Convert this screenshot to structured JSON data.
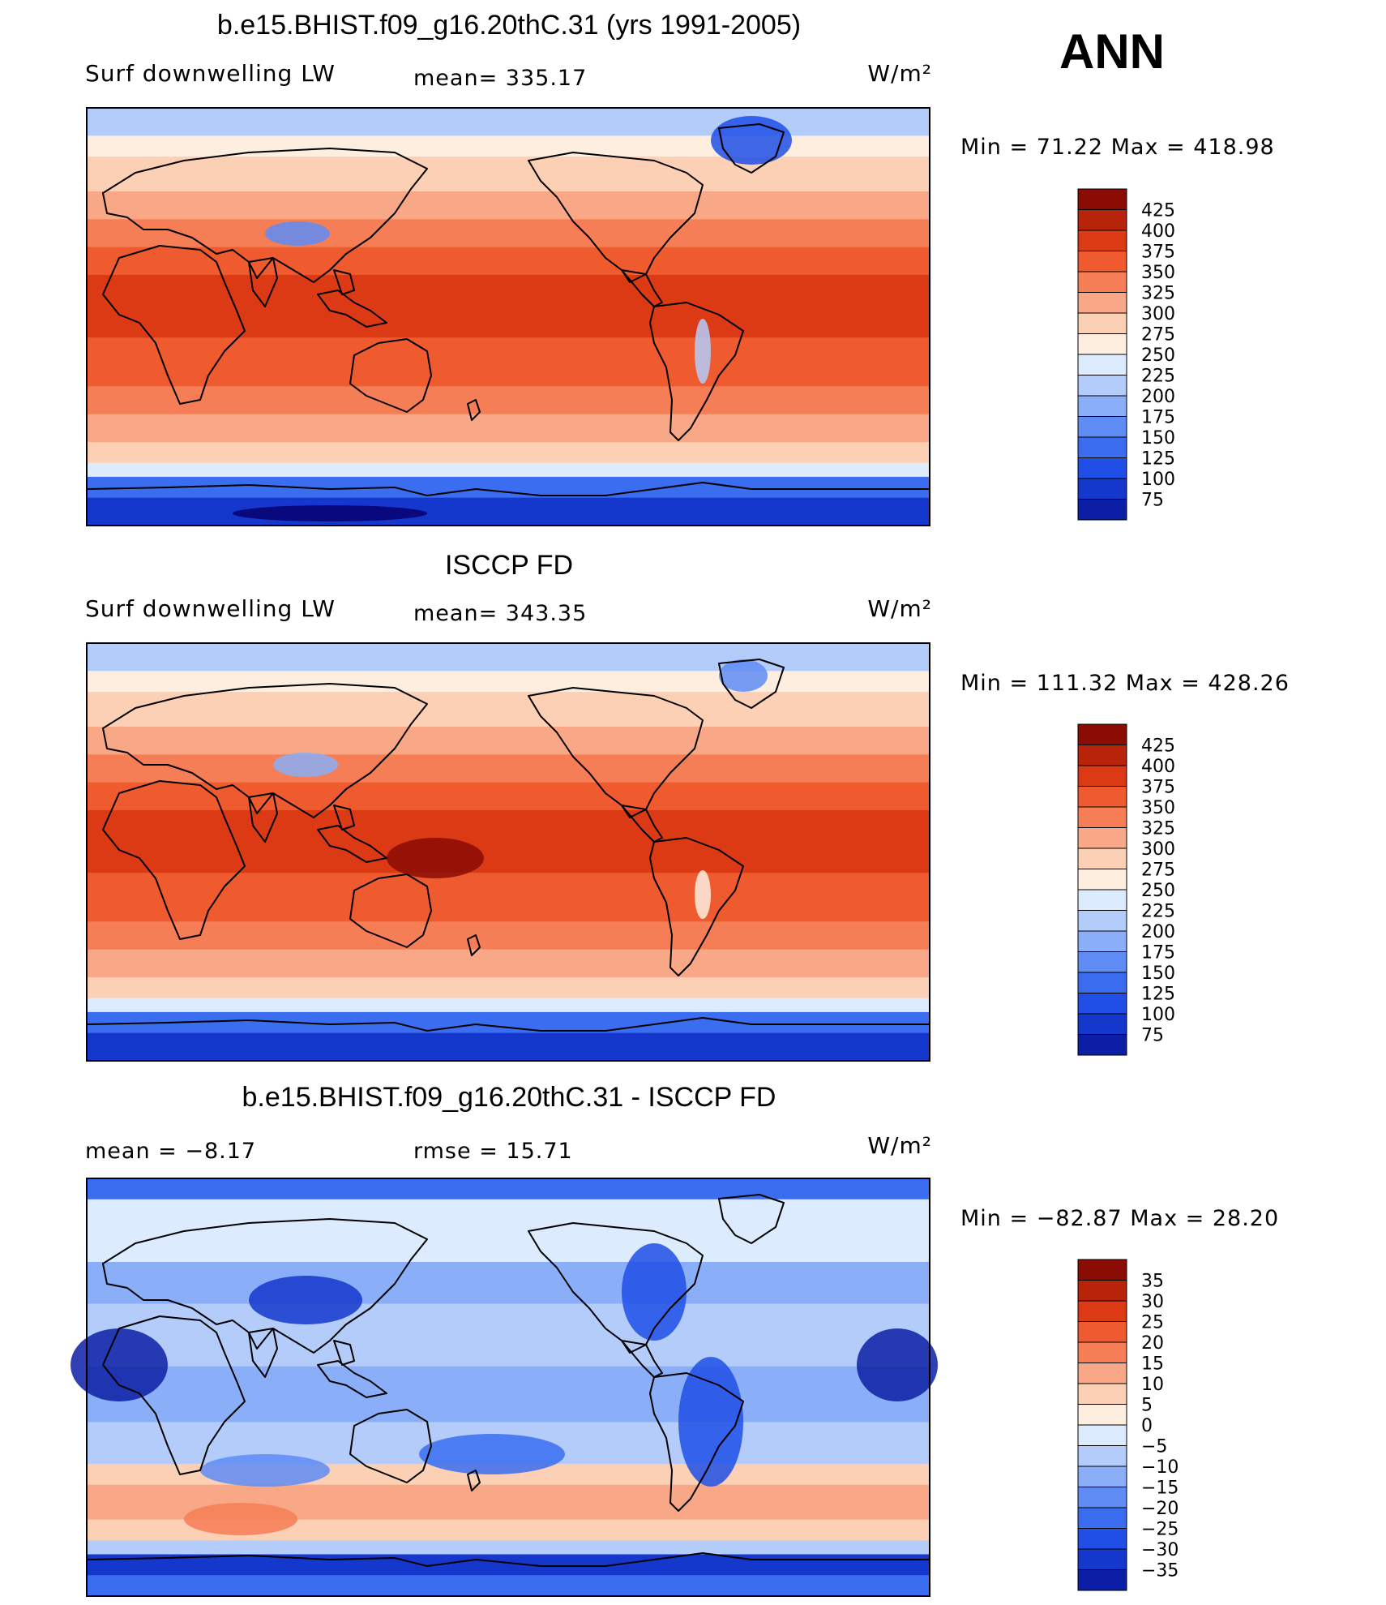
{
  "season": "ANN",
  "colors": {
    "abs_scale": [
      "#08006e",
      "#0c1ea5",
      "#1437cc",
      "#1f4fe6",
      "#3a6df0",
      "#5e8cf4",
      "#8aaef7",
      "#b3ccfa",
      "#dcebfd",
      "#fdeedf",
      "#fcd0b5",
      "#f8a886",
      "#f67e56",
      "#ef5a2e",
      "#dc3a15",
      "#b8240a",
      "#8a0c05"
    ],
    "diff_scale": [
      "#08006e",
      "#0c1ea5",
      "#1437cc",
      "#1f4fe6",
      "#3a6df0",
      "#5e8cf4",
      "#8aaef7",
      "#b3ccfa",
      "#dcebfd",
      "#fdeedf",
      "#fcd0b5",
      "#f8a886",
      "#f67e56",
      "#ef5a2e",
      "#dc3a15",
      "#b8240a",
      "#8a0c05"
    ]
  },
  "panels": [
    {
      "title": "b.e15.BHIST.f09_g16.20thC.31 (yrs 1991-2005)",
      "variable": "Surf downwelling LW",
      "mean_label": "mean=",
      "mean_value": "335.17",
      "units": "W/m²",
      "minmax": {
        "min_label": "Min =",
        "min": "71.22",
        "max_label": "Max =",
        "max": "418.98"
      },
      "colorbar_labels": [
        "425",
        "400",
        "375",
        "350",
        "325",
        "300",
        "275",
        "250",
        "225",
        "200",
        "175",
        "150",
        "125",
        "100",
        "75"
      ],
      "field": "model"
    },
    {
      "title": "ISCCP FD",
      "variable": "Surf downwelling LW",
      "mean_label": "mean=",
      "mean_value": "343.35",
      "units": "W/m²",
      "minmax": {
        "min_label": "Min =",
        "min": "111.32",
        "max_label": "Max =",
        "max": "428.26"
      },
      "colorbar_labels": [
        "425",
        "400",
        "375",
        "350",
        "325",
        "300",
        "275",
        "250",
        "225",
        "200",
        "175",
        "150",
        "125",
        "100",
        "75"
      ],
      "field": "obs"
    },
    {
      "title": "b.e15.BHIST.f09_g16.20thC.31 - ISCCP FD",
      "mean_label": "mean =",
      "mean_value": "−8.17",
      "rmse_label": "rmse =",
      "rmse_value": "15.71",
      "units": "W/m²",
      "minmax": {
        "min_label": "Min =",
        "min": "−82.87",
        "max_label": "Max =",
        "max": "28.20"
      },
      "colorbar_labels": [
        "35",
        "30",
        "25",
        "20",
        "15",
        "10",
        "5",
        "0",
        "−5",
        "−10",
        "−15",
        "−20",
        "−25",
        "−30",
        "−35"
      ],
      "field": "diff"
    }
  ]
}
